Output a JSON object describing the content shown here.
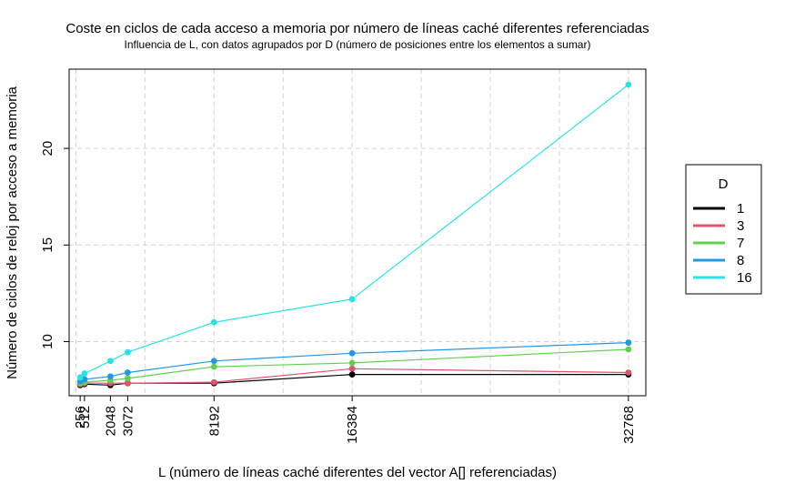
{
  "chart_data": {
    "type": "line",
    "title": "Coste en ciclos de cada acceso a memoria por número de líneas caché diferentes referenciadas",
    "subtitle": "Influencia de L, con datos agrupados por D (número de posiciones entre los elementos a sumar)",
    "xlabel": "L (número de líneas caché diferentes del vector A[] referenciadas)",
    "ylabel": "Número de ciclos de reloj por acceso a memoria",
    "x": [
      256,
      512,
      2048,
      3072,
      8192,
      16384,
      32768
    ],
    "x_tick_labels": [
      "256",
      "512",
      "2048",
      "3072",
      "8192",
      "16384",
      "32768"
    ],
    "y_ticks": [
      10,
      15,
      20
    ],
    "xlim": [
      -400,
      33800
    ],
    "ylim": [
      7.2,
      24.1
    ],
    "grid": true,
    "legend": {
      "title": "D",
      "position": "right"
    },
    "series": [
      {
        "name": "1",
        "color": "#000000",
        "values": [
          7.75,
          7.8,
          7.75,
          7.85,
          7.85,
          8.3,
          8.3
        ]
      },
      {
        "name": "3",
        "color": "#DF536B",
        "values": [
          7.8,
          7.85,
          7.85,
          7.85,
          7.9,
          8.6,
          8.4
        ]
      },
      {
        "name": "7",
        "color": "#61D04F",
        "values": [
          7.85,
          7.9,
          8.0,
          8.1,
          8.7,
          8.9,
          9.6
        ]
      },
      {
        "name": "8",
        "color": "#2297E6",
        "values": [
          7.95,
          8.05,
          8.2,
          8.4,
          9.0,
          9.4,
          9.95
        ]
      },
      {
        "name": "16",
        "color": "#28E2E5",
        "values": [
          8.15,
          8.35,
          9.0,
          9.45,
          11.0,
          12.2,
          23.3
        ]
      }
    ]
  }
}
